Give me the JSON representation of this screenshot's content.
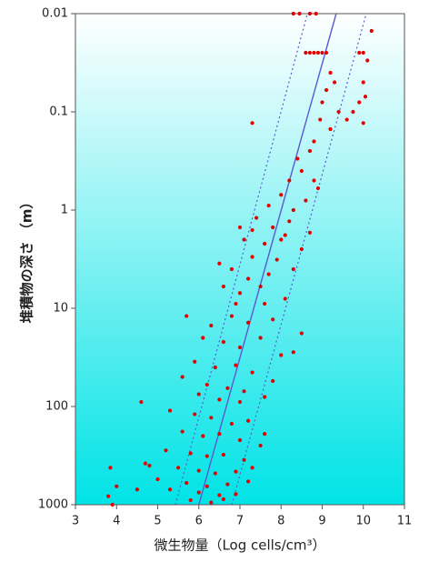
{
  "chart_data": {
    "type": "scatter",
    "xlabel": "微生物量（Log cells/cm³）",
    "ylabel": "堆積物の深さ （m）",
    "xlim": [
      3,
      11
    ],
    "xticks": [
      3,
      4,
      5,
      6,
      7,
      8,
      9,
      10,
      11
    ],
    "ylim": [
      0.01,
      1000
    ],
    "yticks": [
      0.01,
      0.1,
      1,
      10,
      100,
      1000
    ],
    "yscale": "log",
    "yinvert": true,
    "points": {
      "color": "#e00000",
      "x": [
        8.3,
        8.45,
        8.7,
        8.85,
        8.6,
        8.7,
        8.8,
        8.9,
        9.0,
        9.1,
        9.9,
        10.0,
        10.2,
        10.1,
        10.0,
        9.9,
        9.75,
        9.6,
        10.0,
        10.05,
        9.2,
        9.1,
        9.3,
        9.0,
        8.95,
        9.2,
        8.8,
        8.7,
        9.4,
        7.3,
        8.4,
        8.5,
        8.2,
        8.8,
        8.0,
        8.6,
        7.7,
        8.9,
        8.3,
        7.4,
        7.8,
        8.2,
        8.7,
        7.1,
        7.6,
        8.0,
        7.3,
        7.9,
        8.5,
        6.8,
        7.2,
        7.7,
        8.3,
        6.6,
        7.0,
        7.5,
        8.1,
        6.9,
        7.6,
        7.3,
        8.1,
        6.5,
        7.0,
        5.7,
        6.3,
        6.8,
        7.2,
        7.8,
        8.5,
        6.1,
        6.6,
        7.0,
        7.5,
        8.0,
        5.9,
        6.4,
        6.9,
        7.3,
        7.8,
        6.2,
        6.7,
        7.1,
        7.6,
        8.3,
        5.6,
        6.5,
        7.0,
        6.0,
        4.6,
        5.3,
        5.9,
        6.3,
        6.8,
        7.2,
        5.6,
        6.1,
        6.5,
        7.0,
        7.5,
        5.2,
        5.8,
        6.2,
        6.6,
        7.1,
        4.8,
        5.5,
        6.0,
        6.4,
        6.9,
        7.3,
        5.0,
        5.7,
        6.2,
        6.7,
        7.2,
        5.3,
        6.0,
        6.5,
        6.9,
        4.0,
        4.5,
        3.8,
        3.9,
        5.8,
        6.3,
        6.6,
        4.7,
        7.6,
        3.85
      ],
      "y": [
        0.01,
        0.01,
        0.01,
        0.01,
        0.025,
        0.025,
        0.025,
        0.025,
        0.025,
        0.025,
        0.025,
        0.025,
        0.015,
        0.03,
        0.05,
        0.08,
        0.1,
        0.12,
        0.13,
        0.07,
        0.04,
        0.06,
        0.05,
        0.08,
        0.12,
        0.15,
        0.2,
        0.25,
        0.1,
        0.13,
        0.3,
        0.4,
        0.5,
        0.5,
        0.7,
        0.8,
        0.9,
        0.6,
        1,
        1.2,
        1.5,
        1.3,
        1.7,
        2,
        2.2,
        2,
        3,
        3.2,
        2.5,
        4,
        5,
        4.5,
        4,
        6,
        7,
        6,
        8,
        9,
        9,
        1.6,
        1.8,
        3.5,
        1.5,
        12,
        15,
        12,
        14,
        13,
        18,
        20,
        22,
        25,
        20,
        30,
        35,
        40,
        38,
        45,
        55,
        60,
        65,
        70,
        80,
        28,
        50,
        85,
        90,
        75,
        90,
        110,
        120,
        130,
        150,
        140,
        180,
        200,
        190,
        220,
        250,
        280,
        300,
        320,
        310,
        350,
        400,
        420,
        450,
        480,
        460,
        420,
        550,
        600,
        650,
        620,
        580,
        700,
        750,
        800,
        780,
        650,
        700,
        820,
        1000,
        900,
        950,
        880,
        380,
        190,
        420
      ]
    },
    "lines": [
      {
        "x": [
          6.0,
          9.34
        ],
        "y": [
          1000,
          0.01
        ],
        "color": "#5a5ad0",
        "dashed": false
      },
      {
        "x": [
          5.43,
          8.64
        ],
        "y": [
          1000,
          0.01
        ],
        "color": "#5a5ad0",
        "dashed": true
      },
      {
        "x": [
          6.8,
          10.07
        ],
        "y": [
          1000,
          0.01
        ],
        "color": "#5a5ad0",
        "dashed": true
      }
    ]
  }
}
